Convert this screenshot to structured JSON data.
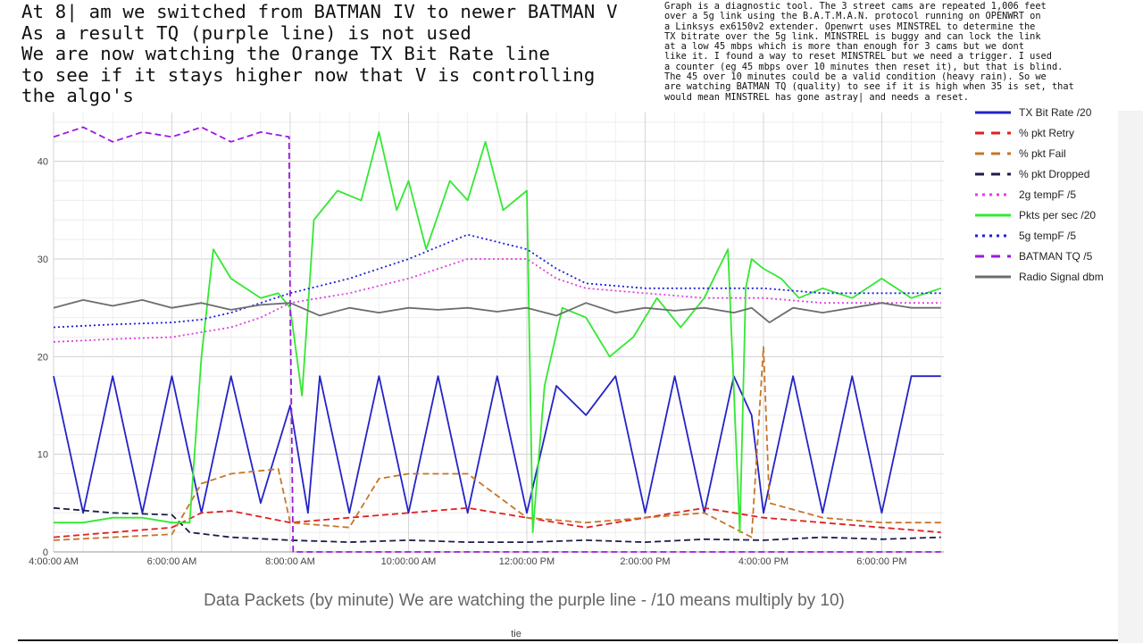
{
  "annotation": [
    "At 8| am we switched from BATMAN IV to newer BATMAN V",
    "As a result TQ (purple line) is not used",
    "We are now watching the Orange TX Bit Rate line",
    "to see if it stays higher now that V is controlling",
    "the algo's"
  ],
  "note": [
    "Graph is a diagnostic tool. The 3 street cams are repeated 1,006 feet",
    "over a 5g link using the B.A.T.M.A.N. protocol running on OPENWRT on",
    "a Linksys ex6150v2 extender. Openwrt uses MINSTREL to determine the",
    "TX bitrate over the 5g link. MINSTREL is buggy and can lock the link",
    "at a low 45 mbps which is more than enough for 3 cams but we dont",
    "like it. I found a way to reset MINSTREL but we need a trigger. I used",
    "a counter (eg 45 mbps over 10 minutes then reset it), but that is blind.",
    "The 45 over 10 minutes could be a valid condition (heavy rain). So we",
    "are watching BATMAN TQ (quality) to see if it is high when 35 is set, that",
    "would mean MINSTREL has gone astray| and needs a reset."
  ],
  "caption": "Data Packets  (by minute) We are watching the purple line -  /10 means multiply by 10)",
  "footer": "tie",
  "chart_data": {
    "type": "line",
    "title": "",
    "xlabel": "",
    "ylabel": "",
    "x_ticks": [
      "4:00:00 AM",
      "6:00:00 AM",
      "8:00:00 AM",
      "10:00:00 AM",
      "12:00:00 PM",
      "2:00:00 PM",
      "4:00:00 PM",
      "6:00:00 PM"
    ],
    "x_tick_hours": [
      4,
      6,
      8,
      10,
      12,
      14,
      16,
      18
    ],
    "xlim_hours": [
      4,
      19.05
    ],
    "y_ticks": [
      0,
      10,
      20,
      30,
      40
    ],
    "ylim": [
      0,
      45
    ],
    "grid": true,
    "legend_position": "right",
    "series": [
      {
        "name": "TX Bit Rate /20",
        "color": "#2323c8",
        "dash": "solid",
        "points": [
          [
            4.0,
            18
          ],
          [
            4.5,
            4
          ],
          [
            5.0,
            18
          ],
          [
            5.5,
            4
          ],
          [
            6.0,
            18
          ],
          [
            6.5,
            4
          ],
          [
            7.0,
            18
          ],
          [
            7.5,
            5
          ],
          [
            8.0,
            15
          ],
          [
            8.3,
            4
          ],
          [
            8.5,
            18
          ],
          [
            9.0,
            4
          ],
          [
            9.5,
            18
          ],
          [
            10.0,
            4
          ],
          [
            10.5,
            18
          ],
          [
            11.0,
            4
          ],
          [
            11.5,
            18
          ],
          [
            12.0,
            4
          ],
          [
            12.5,
            17
          ],
          [
            13.0,
            14
          ],
          [
            13.5,
            18
          ],
          [
            14.0,
            4
          ],
          [
            14.5,
            18
          ],
          [
            15.0,
            4
          ],
          [
            15.5,
            18
          ],
          [
            15.8,
            14
          ],
          [
            16.0,
            4
          ],
          [
            16.5,
            18
          ],
          [
            17.0,
            4
          ],
          [
            17.5,
            18
          ],
          [
            18.0,
            4
          ],
          [
            18.5,
            18
          ],
          [
            19.0,
            18
          ]
        ]
      },
      {
        "name": "% pkt Retry",
        "color": "#e02020",
        "dash": "dashed",
        "points": [
          [
            4.0,
            1.5
          ],
          [
            5.0,
            2.0
          ],
          [
            6.0,
            2.5
          ],
          [
            6.5,
            4.0
          ],
          [
            7.0,
            4.2
          ],
          [
            8.0,
            3.0
          ],
          [
            9.0,
            3.5
          ],
          [
            10.0,
            4.0
          ],
          [
            11.0,
            4.5
          ],
          [
            12.0,
            3.5
          ],
          [
            13.0,
            2.5
          ],
          [
            14.0,
            3.5
          ],
          [
            15.0,
            4.5
          ],
          [
            16.0,
            3.5
          ],
          [
            17.0,
            3.0
          ],
          [
            18.0,
            2.5
          ],
          [
            19.0,
            2.0
          ]
        ]
      },
      {
        "name": "% pkt Fail",
        "color": "#c87528",
        "dash": "dashed",
        "points": [
          [
            4.0,
            1.2
          ],
          [
            5.0,
            1.5
          ],
          [
            6.0,
            1.8
          ],
          [
            6.5,
            7.0
          ],
          [
            7.0,
            8.0
          ],
          [
            7.8,
            8.5
          ],
          [
            8.0,
            3.0
          ],
          [
            9.0,
            2.5
          ],
          [
            9.5,
            7.5
          ],
          [
            10.0,
            8.0
          ],
          [
            11.0,
            8.0
          ],
          [
            12.0,
            3.5
          ],
          [
            13.0,
            3.0
          ],
          [
            14.0,
            3.5
          ],
          [
            15.0,
            4.0
          ],
          [
            15.8,
            1.5
          ],
          [
            16.0,
            21.0
          ],
          [
            16.1,
            5.0
          ],
          [
            17.0,
            3.5
          ],
          [
            18.0,
            3.0
          ],
          [
            19.0,
            3.0
          ]
        ]
      },
      {
        "name": "% pkt Dropped",
        "color": "#1c1c4a",
        "dash": "dashed",
        "points": [
          [
            4.0,
            4.5
          ],
          [
            5.0,
            4.0
          ],
          [
            6.0,
            3.8
          ],
          [
            6.3,
            2.0
          ],
          [
            7.0,
            1.5
          ],
          [
            8.0,
            1.2
          ],
          [
            9.0,
            1.0
          ],
          [
            10.0,
            1.2
          ],
          [
            11.0,
            1.0
          ],
          [
            12.0,
            1.0
          ],
          [
            13.0,
            1.2
          ],
          [
            14.0,
            1.0
          ],
          [
            15.0,
            1.3
          ],
          [
            16.0,
            1.2
          ],
          [
            17.0,
            1.5
          ],
          [
            18.0,
            1.3
          ],
          [
            19.0,
            1.5
          ]
        ]
      },
      {
        "name": "2g tempF /5",
        "color": "#e040e0",
        "dash": "dotted",
        "points": [
          [
            4.0,
            21.5
          ],
          [
            5.0,
            21.8
          ],
          [
            6.0,
            22.0
          ],
          [
            6.5,
            22.5
          ],
          [
            7.0,
            23.0
          ],
          [
            7.5,
            24.0
          ],
          [
            8.0,
            25.5
          ],
          [
            9.0,
            26.5
          ],
          [
            10.0,
            28.0
          ],
          [
            11.0,
            30.0
          ],
          [
            12.0,
            30.0
          ],
          [
            12.5,
            28.0
          ],
          [
            13.0,
            27.0
          ],
          [
            14.0,
            26.5
          ],
          [
            15.0,
            26.0
          ],
          [
            16.0,
            26.0
          ],
          [
            17.0,
            25.5
          ],
          [
            18.0,
            25.5
          ],
          [
            19.0,
            25.5
          ]
        ]
      },
      {
        "name": "Pkts per sec /20",
        "color": "#33e833",
        "dash": "solid",
        "points": [
          [
            4.0,
            3.0
          ],
          [
            4.5,
            3.0
          ],
          [
            5.0,
            3.5
          ],
          [
            5.5,
            3.5
          ],
          [
            6.0,
            3.0
          ],
          [
            6.3,
            3.0
          ],
          [
            6.5,
            20.0
          ],
          [
            6.7,
            31.0
          ],
          [
            7.0,
            28.0
          ],
          [
            7.5,
            26.0
          ],
          [
            7.8,
            26.5
          ],
          [
            8.0,
            25.0
          ],
          [
            8.2,
            16.0
          ],
          [
            8.4,
            34.0
          ],
          [
            8.8,
            37.0
          ],
          [
            9.2,
            36.0
          ],
          [
            9.5,
            43.0
          ],
          [
            9.8,
            35.0
          ],
          [
            10.0,
            38.0
          ],
          [
            10.3,
            31.0
          ],
          [
            10.7,
            38.0
          ],
          [
            11.0,
            36.0
          ],
          [
            11.3,
            42.0
          ],
          [
            11.6,
            35.0
          ],
          [
            12.0,
            37.0
          ],
          [
            12.1,
            2.0
          ],
          [
            12.3,
            17.0
          ],
          [
            12.6,
            25.0
          ],
          [
            13.0,
            24.0
          ],
          [
            13.4,
            20.0
          ],
          [
            13.8,
            22.0
          ],
          [
            14.2,
            26.0
          ],
          [
            14.6,
            23.0
          ],
          [
            15.0,
            26.0
          ],
          [
            15.4,
            31.0
          ],
          [
            15.6,
            2.0
          ],
          [
            15.7,
            27.0
          ],
          [
            15.8,
            30.0
          ],
          [
            16.0,
            29.0
          ],
          [
            16.3,
            28.0
          ],
          [
            16.6,
            26.0
          ],
          [
            17.0,
            27.0
          ],
          [
            17.5,
            26.0
          ],
          [
            18.0,
            28.0
          ],
          [
            18.5,
            26.0
          ],
          [
            19.0,
            27.0
          ]
        ]
      },
      {
        "name": "5g tempF /5",
        "color": "#2020d8",
        "dash": "dotted",
        "points": [
          [
            4.0,
            23.0
          ],
          [
            5.0,
            23.3
          ],
          [
            6.0,
            23.5
          ],
          [
            6.5,
            23.8
          ],
          [
            7.0,
            24.5
          ],
          [
            7.5,
            25.5
          ],
          [
            8.0,
            26.5
          ],
          [
            9.0,
            28.0
          ],
          [
            10.0,
            30.0
          ],
          [
            11.0,
            32.5
          ],
          [
            12.0,
            31.0
          ],
          [
            12.5,
            29.0
          ],
          [
            13.0,
            27.5
          ],
          [
            14.0,
            27.0
          ],
          [
            15.0,
            27.0
          ],
          [
            16.0,
            27.0
          ],
          [
            17.0,
            26.5
          ],
          [
            18.0,
            26.5
          ],
          [
            19.0,
            26.5
          ]
        ]
      },
      {
        "name": "BATMAN TQ /5",
        "color": "#9d18e0",
        "dash": "dashed",
        "points": [
          [
            4.0,
            42.5
          ],
          [
            4.5,
            43.5
          ],
          [
            5.0,
            42.0
          ],
          [
            5.5,
            43.0
          ],
          [
            6.0,
            42.5
          ],
          [
            6.5,
            43.5
          ],
          [
            7.0,
            42.0
          ],
          [
            7.5,
            43.0
          ],
          [
            7.98,
            42.5
          ],
          [
            8.0,
            25.0
          ],
          [
            8.05,
            0.0
          ],
          [
            19.0,
            0.0
          ]
        ]
      },
      {
        "name": "Radio Signal dbm",
        "color": "#6d6d6d",
        "dash": "solid",
        "points": [
          [
            4.0,
            25.0
          ],
          [
            4.5,
            25.8
          ],
          [
            5.0,
            25.2
          ],
          [
            5.5,
            25.8
          ],
          [
            6.0,
            25.0
          ],
          [
            6.5,
            25.5
          ],
          [
            7.0,
            24.8
          ],
          [
            7.5,
            25.3
          ],
          [
            8.0,
            25.5
          ],
          [
            8.5,
            24.2
          ],
          [
            9.0,
            25.0
          ],
          [
            9.5,
            24.5
          ],
          [
            10.0,
            25.0
          ],
          [
            10.5,
            24.8
          ],
          [
            11.0,
            25.0
          ],
          [
            11.5,
            24.6
          ],
          [
            12.0,
            25.0
          ],
          [
            12.5,
            24.2
          ],
          [
            13.0,
            25.5
          ],
          [
            13.5,
            24.5
          ],
          [
            14.0,
            25.0
          ],
          [
            14.5,
            24.7
          ],
          [
            15.0,
            25.0
          ],
          [
            15.5,
            24.5
          ],
          [
            15.8,
            25.0
          ],
          [
            16.1,
            23.5
          ],
          [
            16.5,
            25.0
          ],
          [
            17.0,
            24.5
          ],
          [
            17.5,
            25.0
          ],
          [
            18.0,
            25.5
          ],
          [
            18.5,
            25.0
          ],
          [
            19.0,
            25.0
          ]
        ]
      }
    ]
  }
}
